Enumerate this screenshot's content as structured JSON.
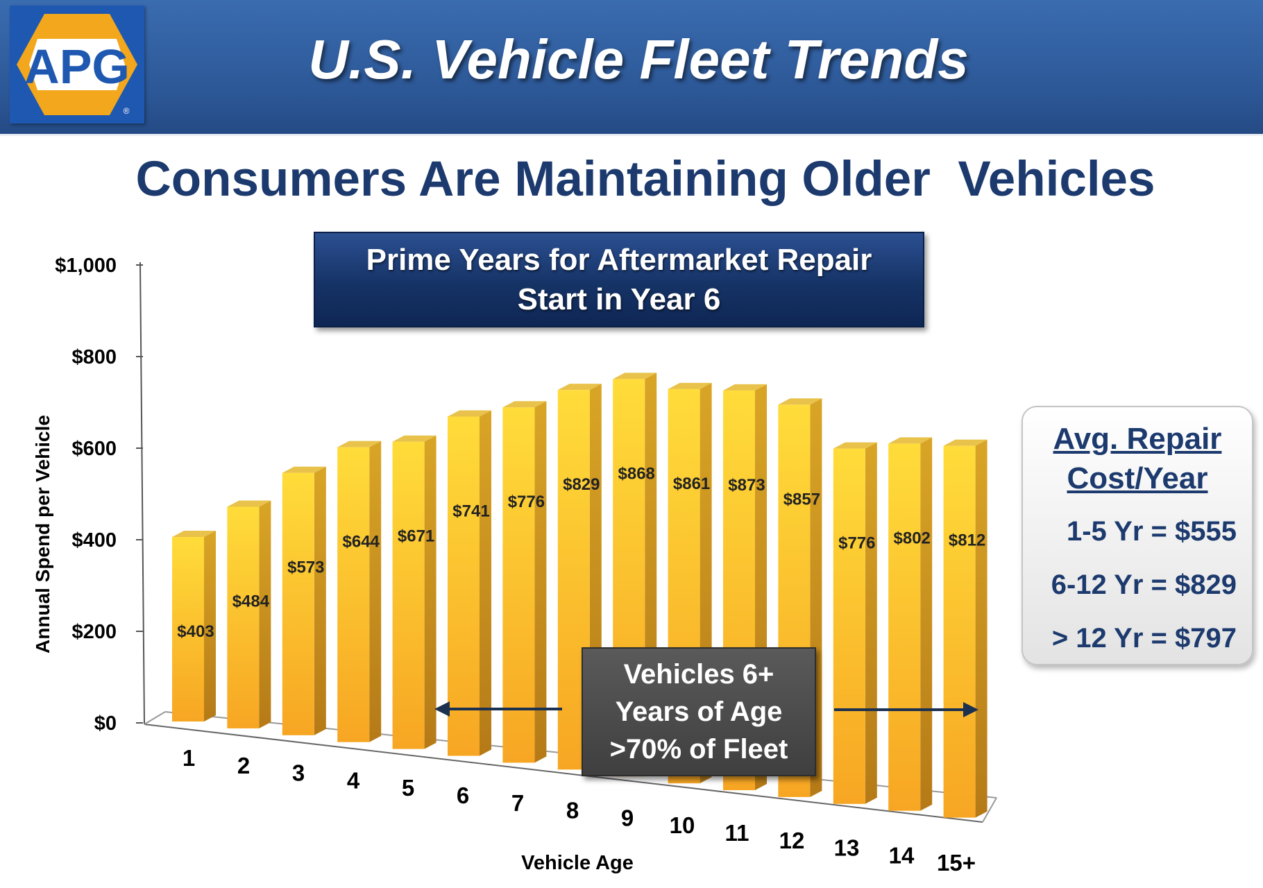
{
  "header": {
    "logo_text": "APG",
    "logo_mark": "®",
    "title": "U.S. Vehicle Fleet Trends"
  },
  "subtitle": "Consumers Are Maintaining Older  Vehicles",
  "callouts": {
    "prime": [
      "Prime Years for Aftermarket Repair",
      "Start in Year 6"
    ],
    "fleet": [
      "Vehicles 6+",
      "Years of Age",
      ">70% of Fleet"
    ]
  },
  "avg_box": {
    "title": [
      "Avg. Repair",
      "Cost/Year"
    ],
    "lines": [
      "1-5 Yr = $555",
      "6-12 Yr = $829",
      "> 12 Yr = $797"
    ]
  },
  "colors": {
    "bar_front_top": "#ffdc3a",
    "bar_front_bottom": "#f7a623",
    "bar_side": "#c28a1c",
    "header_blue": "#2c5796",
    "navy_text": "#1c3a6e"
  },
  "chart_data": {
    "type": "bar",
    "style": "3d-perspective",
    "title": "",
    "xlabel": "Vehicle Age",
    "ylabel": "Annual Spend per Vehicle",
    "ylim": [
      0,
      1000
    ],
    "yticks": [
      0,
      200,
      400,
      600,
      800,
      1000
    ],
    "ytick_labels": [
      "$0",
      "$200",
      "$400",
      "$600",
      "$800",
      "$1,000"
    ],
    "categories": [
      "1",
      "2",
      "3",
      "4",
      "5",
      "6",
      "7",
      "8",
      "9",
      "10",
      "11",
      "12",
      "13",
      "14",
      "15+"
    ],
    "values": [
      403,
      484,
      573,
      644,
      671,
      741,
      776,
      829,
      868,
      861,
      873,
      857,
      776,
      802,
      812
    ],
    "labels": [
      "$403",
      "$484",
      "$573",
      "$644",
      "$671",
      "$741",
      "$776",
      "$829",
      "$868",
      "$861",
      "$873",
      "$857",
      "$776",
      "$802",
      "$812"
    ],
    "grid": false,
    "legend": "none"
  }
}
